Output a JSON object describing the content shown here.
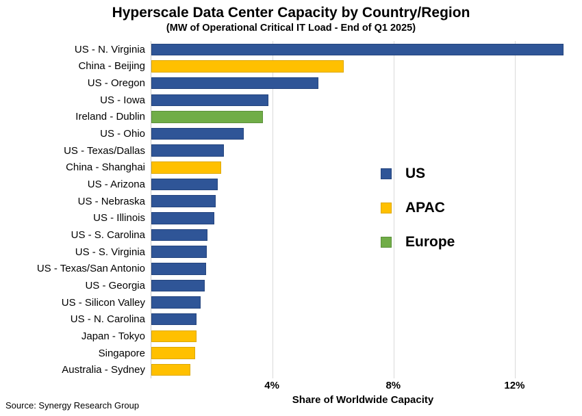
{
  "title": "Hyperscale Data Center Capacity by Country/Region",
  "subtitle": "(MW of Operational Critical IT Load - End of Q1 2025)",
  "x_axis_title": "Share of Worldwide Capacity",
  "source": "Source: Synergy Research Group",
  "region_colors": {
    "US": {
      "fill": "#2F5597",
      "border": "#24447D"
    },
    "APAC": {
      "fill": "#FFC000",
      "border": "#DDA700"
    },
    "Europe": {
      "fill": "#70AD47",
      "border": "#5B8F3A"
    }
  },
  "legend": [
    {
      "label": "US",
      "region": "US"
    },
    {
      "label": "APAC",
      "region": "APAC"
    },
    {
      "label": "Europe",
      "region": "Europe"
    }
  ],
  "chart_data": {
    "type": "bar",
    "orientation": "horizontal",
    "title": "Hyperscale Data Center Capacity by Country/Region",
    "subtitle": "(MW of Operational Critical IT Load - End of Q1 2025)",
    "xlabel": "Share of Worldwide Capacity",
    "ylabel": "",
    "xlim": [
      0,
      14
    ],
    "xticks": [
      4,
      8,
      12
    ],
    "xtick_labels": [
      "4%",
      "8%",
      "12%"
    ],
    "grid": true,
    "gridline_color": "#d9d9d9",
    "legend_position": "center-right",
    "units": "percent share of worldwide capacity",
    "categories": [
      "US - N. Virginia",
      "China - Beijing",
      "US - Oregon",
      "US - Iowa",
      "Ireland - Dublin",
      "US - Ohio",
      "US - Texas/Dallas",
      "China - Shanghai",
      "US - Arizona",
      "US - Nebraska",
      "US - Illinois",
      "US - S. Carolina",
      "US - S. Virginia",
      "US - Texas/San Antonio",
      "US - Georgia",
      "US - Silicon Valley",
      "US - N. Carolina",
      "Japan - Tokyo",
      "Singapore",
      "Australia - Sydney"
    ],
    "values": [
      13.6,
      6.35,
      5.5,
      3.85,
      3.67,
      3.05,
      2.4,
      2.3,
      2.2,
      2.12,
      2.07,
      1.85,
      1.82,
      1.8,
      1.75,
      1.62,
      1.5,
      1.5,
      1.45,
      1.28
    ],
    "regions": [
      "US",
      "APAC",
      "US",
      "US",
      "Europe",
      "US",
      "US",
      "APAC",
      "US",
      "US",
      "US",
      "US",
      "US",
      "US",
      "US",
      "US",
      "US",
      "APAC",
      "APAC",
      "APAC"
    ]
  }
}
